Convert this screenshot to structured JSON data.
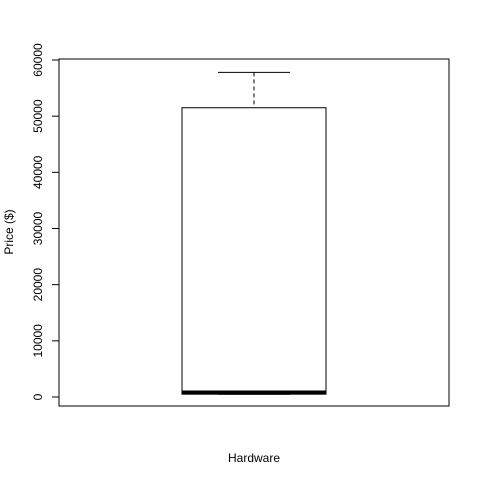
{
  "chart_data": {
    "type": "box",
    "xlabel": "Hardware",
    "ylabel": "Price ($)",
    "ylim": [
      -2000,
      60000
    ],
    "yticks": [
      0,
      10000,
      20000,
      30000,
      40000,
      50000,
      60000
    ],
    "grid": false,
    "boxes": [
      {
        "lower_whisker": 500,
        "q1": 500,
        "median": 800,
        "q3": 51500,
        "upper_whisker": 57800
      }
    ]
  }
}
